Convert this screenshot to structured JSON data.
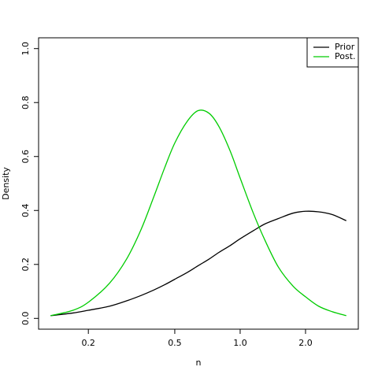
{
  "chart_data": {
    "type": "line",
    "x_label": "n",
    "y_label": "Density",
    "log_x": true,
    "x": [
      0.134,
      0.17,
      0.2,
      0.25,
      0.3,
      0.35,
      0.4,
      0.45,
      0.5,
      0.57,
      0.64,
      0.72,
      0.8,
      0.9,
      1.0,
      1.15,
      1.3,
      1.5,
      1.75,
      2.0,
      2.3,
      2.65,
      3.08
    ],
    "series": [
      {
        "name": "Prior",
        "color": "#000000",
        "values": [
          0.01,
          0.02,
          0.03,
          0.045,
          0.065,
          0.085,
          0.105,
          0.125,
          0.145,
          0.17,
          0.195,
          0.22,
          0.245,
          0.27,
          0.295,
          0.325,
          0.35,
          0.37,
          0.39,
          0.397,
          0.395,
          0.385,
          0.362
        ]
      },
      {
        "name": "Post.",
        "color": "#00cc00",
        "values": [
          0.01,
          0.03,
          0.06,
          0.13,
          0.22,
          0.33,
          0.45,
          0.56,
          0.65,
          0.73,
          0.77,
          0.76,
          0.71,
          0.62,
          0.52,
          0.39,
          0.29,
          0.19,
          0.12,
          0.08,
          0.045,
          0.025,
          0.01
        ]
      }
    ],
    "xlim": [
      0.118,
      3.5
    ],
    "ylim": [
      -0.04,
      1.04
    ],
    "xticks": [
      0.2,
      0.5,
      {
        "value": 1,
        "label": "1.0"
      },
      {
        "value": 2,
        "label": "2.0"
      }
    ],
    "yticks": [
      {
        "value": 0,
        "label": "0.0"
      },
      0.2,
      0.4,
      0.6,
      0.8,
      {
        "value": 1,
        "label": "1.0"
      }
    ],
    "legend": "top-right"
  }
}
